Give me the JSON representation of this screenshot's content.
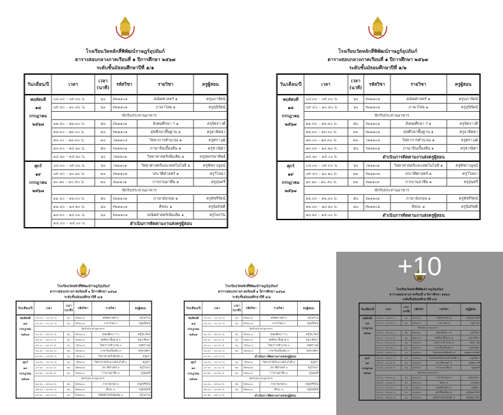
{
  "headers": {
    "day": "วัน/เดือน/ปี",
    "time": "เวลา",
    "dur1": "เวลา",
    "dur2": "(นาที)",
    "code": "รหัสวิชา",
    "subject": "รายวิชา",
    "teacher": "ครูผู้สอน"
  },
  "more_count": "+10",
  "tiles": [
    {
      "school": "โรงเรียนวัดหลักสี่พิพัฒน์ราษฎร์อุปถัมภ์",
      "line2": "ตารางสอบกลางภาคเรียนที่ ๑ ปีการศึกษา ๒๕๖๗",
      "line3": "ระดับชั้นมัธยมศึกษาปีที่ ๑/๑",
      "days": [
        {
          "label": [
            "พฤหัสบดี",
            "๑๘",
            "กรกฎาคม",
            "๒๕๖๗"
          ],
          "rows": [
            {
              "type": "exam",
              "time": "๐๘.๓๐ – ๐๙.๓๐ น.",
              "dur": "๖๐",
              "code": "ค๒๑๑๐๑",
              "subject": "คณิตศาสตร์ ๑",
              "teacher": "ครูนภารัตน์"
            },
            {
              "type": "exam",
              "time": "๐๙.๔๐ – ๑๐.๔๐ น.",
              "dur": "๖๐",
              "code": "ท๒๑๑๐๑",
              "subject": "ภาษาไทย ๑",
              "teacher": "ครูสุนีรัตน์"
            },
            {
              "type": "break",
              "text": "พักรับประทานอาหาร"
            },
            {
              "type": "exam",
              "time": "๑๑.๔๐ – ๑๒.๓๐ น.",
              "dur": "๕๐",
              "code": "ส๒๑๑๐๑",
              "subject": "สังคมศึกษา ฯ ๑",
              "teacher": "ครูจิตราวดี"
            },
            {
              "type": "exam",
              "time": "๑๒.๓๐ – ๑๓.๐๐ น.",
              "dur": "๓๐",
              "code": "พ๒๑๑๐๑",
              "subject": "สุขศึกษาพื้นฐาน ๑",
              "teacher": "ครูอาทิตยา"
            },
            {
              "type": "exam",
              "time": "๑๓.๐๐ – ๑๓.๓๐ น.",
              "dur": "๓๐",
              "code": "ว๒๑๑๐๔",
              "subject": "วิทยาการคำนวณ ๑",
              "teacher": "ครูศราวุฒิ"
            },
            {
              "type": "exam",
              "time": "๑๓.๓๐ – ๑๔.๒๐ น.",
              "dur": "๕๐",
              "code": "จ๒๑๒๐๑",
              "subject": "ภาษาจีนเบื้องต้น ๑",
              "teacher": "ครูชาณิศา"
            },
            {
              "type": "exam",
              "time": "๑๔.๒๐ – ๑๕.๒๐ น.",
              "dur": "๖๐",
              "code": "ว๒๑๒๐๑",
              "subject": "วิทยาศาสตร์เพิ่มเติม ๑",
              "teacher": "ครูสุพรรษาทิพย์"
            }
          ]
        },
        {
          "label": [
            "ศุกร์",
            "๑๙",
            "กรกฎาคม",
            "๒๕๖๗"
          ],
          "rows": [
            {
              "type": "exam",
              "time": "๐๘.๓๐ – ๐๙.๓๐ น.",
              "dur": "๖๐",
              "code": "ว๒๑๑๐๑",
              "subject": "วิทยาศาสตร์และเทคโนโลยี ๑",
              "teacher": "ครูพัชกาญจน์"
            },
            {
              "type": "exam",
              "time": "๐๙.๔๐ – ๑๐.๑๐ น.",
              "dur": "๓๐",
              "code": "ส๒๑๑๐๒",
              "subject": "ประวัติศาสตร์ ๑",
              "teacher": "ครูวิไลลา"
            },
            {
              "type": "exam",
              "time": "๑๐.๒๐ – ๑๐.๕๐ น.",
              "dur": "๓๐",
              "code": "ง๒๑๑๐๑",
              "subject": "การงานอาชีพ ๑",
              "teacher": "ครูสุนทรี"
            },
            {
              "type": "break",
              "text": "พักรับประทานอาหาร"
            },
            {
              "type": "exam",
              "time": "๑๑.๔๐ – ๑๒.๓๐ น.",
              "dur": "๕๐",
              "code": "อ๒๑๑๐๑",
              "subject": "ภาษาอังกฤษ ๑",
              "teacher": "ครูพัชรีรัตน์"
            },
            {
              "type": "exam",
              "time": "๑๒.๔๐ – ๑๓.๒๐ น.",
              "dur": "๔๐",
              "code": "ศ๒๑๑๐๑",
              "subject": "ศิลปะ ๑",
              "teacher": "ครูนิยกิตติ"
            },
            {
              "type": "exam",
              "time": "๑๓.๓๐ – ๑๔.๓๐ น.",
              "dur": "๖๐",
              "code": "ค๒๑๒๐๑",
              "subject": "คณิตศาสตร์เพิ่มเติม ๑",
              "teacher": "ครูไพรวัน"
            },
            {
              "type": "final",
              "time": "๑๔.๔๐ – ๑๕.๐๐ น.",
              "text": "ดำเนินการติดตามงานส่งครูผู้สอน"
            }
          ]
        }
      ]
    },
    {
      "school": "โรงเรียนวัดหลักสี่พิพัฒน์ราษฎร์อุปถัมภ์",
      "line2": "ตารางสอบกลางภาคเรียนที่ ๑ ปีการศึกษา ๒๕๖๗",
      "line3": "ระดับชั้นมัธยมศึกษาปีที่ ๑/๒",
      "days": [
        {
          "label": [
            "พฤหัสบดี",
            "๑๘",
            "กรกฎาคม",
            "๒๕๖๗"
          ],
          "rows": [
            {
              "type": "exam",
              "time": "๐๘.๓๐ – ๐๙.๓๐ น.",
              "dur": "๖๐",
              "code": "ค๒๑๑๐๑",
              "subject": "คณิตศาสตร์ ๑",
              "teacher": "ครูนภารัตน์"
            },
            {
              "type": "exam",
              "time": "๐๙.๔๐ – ๑๐.๔๐ น.",
              "dur": "๖๐",
              "code": "ท๒๑๑๐๑",
              "subject": "ภาษาไทย ๑",
              "teacher": "ครูสุนีรัตน์"
            },
            {
              "type": "break",
              "text": "พักรับประทานอาหาร"
            },
            {
              "type": "exam",
              "time": "๑๑.๔๐ – ๑๒.๓๐ น.",
              "dur": "๕๐",
              "code": "ส๒๑๑๐๑",
              "subject": "สังคมศึกษา ฯ ๑",
              "teacher": "ครูจิตราวดี"
            },
            {
              "type": "exam",
              "time": "๑๒.๓๐ – ๑๓.๐๐ น.",
              "dur": "๓๐",
              "code": "พ๒๑๑๐๑",
              "subject": "สุขศึกษาพื้นฐาน ๑",
              "teacher": "ครูอาทิตยา"
            },
            {
              "type": "exam",
              "time": "๑๓.๐๐ – ๑๓.๓๐ น.",
              "dur": "๓๐",
              "code": "ว๒๑๑๐๔",
              "subject": "วิทยาการคำนวณ ๑",
              "teacher": "ครูศราวุฒิ"
            },
            {
              "type": "exam",
              "time": "๑๓.๓๐ – ๑๔.๒๐ น.",
              "dur": "๕๐",
              "code": "จ๒๑๒๐๑",
              "subject": "ภาษาจีนเบื้องต้น ๑",
              "teacher": "ครูชาณิศา"
            },
            {
              "type": "final",
              "time": "๑๔.๒๐ – ๑๕.๐๐ น.",
              "text": "ดำเนินการติดตามงานส่งครูผู้สอน"
            }
          ]
        },
        {
          "label": [
            "ศุกร์",
            "๑๙",
            "กรกฎาคม",
            "๒๕๖๗"
          ],
          "rows": [
            {
              "type": "exam",
              "time": "๐๘.๓๐ – ๐๙.๓๐ น.",
              "dur": "๖๐",
              "code": "ว๒๑๑๐๑",
              "subject": "วิทยาศาสตร์และเทคโนโลยี ๑",
              "teacher": "ครูพัชกาญจน์"
            },
            {
              "type": "exam",
              "time": "๐๙.๔๐ – ๑๐.๑๐ น.",
              "dur": "๓๐",
              "code": "ส๒๑๑๐๒",
              "subject": "ประวัติศาสตร์ ๑",
              "teacher": "ครูวิไลลา"
            },
            {
              "type": "exam",
              "time": "๑๐.๒๐ – ๑๐.๕๐ น.",
              "dur": "๓๐",
              "code": "ง๒๑๑๐๑",
              "subject": "การงานอาชีพ ๑",
              "teacher": "ครูสุนทรี"
            },
            {
              "type": "break",
              "text": "พักรับประทานอาหาร"
            },
            {
              "type": "exam",
              "time": "๑๑.๔๐ – ๑๒.๓๐ น.",
              "dur": "๕๐",
              "code": "อ๒๑๑๐๑",
              "subject": "ภาษาอังกฤษ ๑",
              "teacher": "ครูพัชรีรัตน์"
            },
            {
              "type": "exam",
              "time": "๑๒.๔๐ – ๑๓.๒๐ น.",
              "dur": "๔๐",
              "code": "ศ๒๑๑๐๑",
              "subject": "ศิลปะ ๑",
              "teacher": "ครูนิยกิตติ"
            },
            {
              "type": "final",
              "time": "๑๓.๒๐ – ๑๕.๐๐ น.",
              "text": "ดำเนินการติดตามงานส่งครูผู้สอน"
            }
          ]
        }
      ]
    },
    {
      "school": "โรงเรียนวัดหลักสี่พิพัฒน์ราษฎร์อุปถัมภ์",
      "line2": "ตารางสอบกลางภาคเรียนที่ ๑ ปีการศึกษา ๒๕๖๗",
      "line3": "ระดับชั้นมัธยมศึกษาปีที่ ๒/๑",
      "days": [
        {
          "label": [
            "พฤหัสบดี",
            "๑๘",
            "กรกฎาคม",
            "๒๕๖๗"
          ],
          "rows": [
            {
              "type": "exam",
              "time": "๐๘.๓๐ – ๐๙.๓๐ น.",
              "dur": "๖๐",
              "code": "ค๒๒๑๐๑",
              "subject": "คณิตศาสตร์ ๓",
              "teacher": "ครูไพรวัน"
            },
            {
              "type": "exam",
              "time": "๐๙.๔๐ – ๑๐.๔๐ น.",
              "dur": "๖๐",
              "code": "ท๒๒๑๐๑",
              "subject": "ภาษาไทย ๓",
              "teacher": "ครูสุนีรัตน์"
            },
            {
              "type": "break",
              "text": "พักรับประทานอาหาร"
            },
            {
              "type": "exam",
              "time": "๑๑.๔๐ – ๑๒.๓๐ น.",
              "dur": "๕๐",
              "code": "ส๒๒๑๐๑",
              "subject": "สังคมศึกษา ฯ ๓",
              "teacher": "ครูปิยะรัตน์"
            },
            {
              "type": "exam",
              "time": "๑๒.๓๐ – ๑๓.๐๐ น.",
              "dur": "๓๐",
              "code": "พ๒๒๑๐๑",
              "subject": "สุขศึกษาพื้นฐาน ๓",
              "teacher": "ครูอาทิตยา"
            },
            {
              "type": "exam",
              "time": "๑๓.๐๐ – ๑๓.๓๐ น.",
              "dur": "๓๐",
              "code": "ว๒๒๑๐๔",
              "subject": "วิทยาการคำนวณ ๓",
              "teacher": "ครูศราวุฒิ"
            },
            {
              "type": "exam",
              "time": "๑๓.๓๐ – ๑๔.๒๐ น.",
              "dur": "๕๐",
              "code": "จ๒๒๒๐๑",
              "subject": "ภาษาจีนเบื้องต้น ๓",
              "teacher": "ครูชาณิศา"
            },
            {
              "type": "exam",
              "time": "๑๔.๒๐ – ๑๕.๒๐ น.",
              "dur": "๖๐",
              "code": "ว๒๒๒๐๑",
              "subject": "วิทยาศาสตร์เพิ่มเติม ๓",
              "teacher": "ครูสุดา"
            }
          ]
        },
        {
          "label": [
            "ศุกร์",
            "๑๙",
            "กรกฎาคม",
            "๒๕๖๗"
          ],
          "rows": [
            {
              "type": "exam",
              "time": "๐๘.๓๐ – ๐๙.๓๐ น.",
              "dur": "๖๐",
              "code": "ว๒๒๑๐๑",
              "subject": "วิทยาศาสตร์และเทคโนโลยี ๓",
              "teacher": "ครูสุดา"
            },
            {
              "type": "exam",
              "time": "๐๙.๔๐ – ๑๐.๑๐ น.",
              "dur": "๓๐",
              "code": "ส๒๒๑๐๒",
              "subject": "ประวัติศาสตร์ ๓",
              "teacher": "ครูวิไลลา"
            },
            {
              "type": "exam",
              "time": "๑๐.๒๐ – ๑๐.๕๐ น.",
              "dur": "๓๐",
              "code": "ง๒๒๑๐๑",
              "subject": "การงานอาชีพ ๓",
              "teacher": "ครูสุนทรี"
            },
            {
              "type": "break",
              "text": "พักรับประทานอาหาร"
            },
            {
              "type": "exam",
              "time": "๑๑.๔๐ – ๑๒.๓๐ น.",
              "dur": "๕๐",
              "code": "อ๒๒๑๐๑",
              "subject": "ภาษาอังกฤษ ๓",
              "teacher": "ครูพัชรีรัตน์"
            },
            {
              "type": "exam",
              "time": "๑๒.๔๐ – ๑๓.๒๐ น.",
              "dur": "๔๐",
              "code": "ศ๒๒๑๐๑",
              "subject": "ศิลปะ ๓",
              "teacher": "ครูนิยกิตติ"
            },
            {
              "type": "exam",
              "time": "๑๓.๓๐ – ๑๔.๓๐ น.",
              "dur": "๖๐",
              "code": "ค๒๒๒๐๑",
              "subject": "คณิตศาสตร์เพิ่มเติม ๓",
              "teacher": "ครูไพรวัน"
            }
          ]
        }
      ]
    },
    {
      "school": "โรงเรียนวัดหลักสี่พิพัฒน์ราษฎร์อุปถัมภ์",
      "line2": "ตารางสอบกลางภาคเรียนที่ ๑ ปีการศึกษา ๒๕๖๗",
      "line3": "ระดับชั้นมัธยมศึกษาปีที่ ๒/๒",
      "days": [
        {
          "label": [
            "พฤหัสบดี",
            "๑๘",
            "กรกฎาคม",
            "๒๕๖๗"
          ],
          "rows": [
            {
              "type": "exam",
              "time": "๐๘.๓๐ – ๐๙.๓๐ น.",
              "dur": "๖๐",
              "code": "ค๒๒๑๐๑",
              "subject": "คณิตศาสตร์ ๓",
              "teacher": "ครูไพรวัน"
            },
            {
              "type": "exam",
              "time": "๐๙.๔๐ – ๑๐.๔๐ น.",
              "dur": "๖๐",
              "code": "ท๒๒๑๐๑",
              "subject": "ภาษาไทย ๓",
              "teacher": "ครูสุนีรัตน์"
            },
            {
              "type": "break",
              "text": "พักรับประทานอาหาร"
            },
            {
              "type": "exam",
              "time": "๑๑.๔๐ – ๑๒.๓๐ น.",
              "dur": "๕๐",
              "code": "ส๒๒๑๐๑",
              "subject": "สังคมศึกษา ฯ ๓",
              "teacher": "ครูปิยะรัตน์"
            },
            {
              "type": "exam",
              "time": "๑๒.๓๐ – ๑๓.๐๐ น.",
              "dur": "๓๐",
              "code": "พ๒๒๑๐๑",
              "subject": "สุขศึกษาพื้นฐาน ๓",
              "teacher": "ครูอาทิตยา"
            },
            {
              "type": "exam",
              "time": "๑๓.๐๐ – ๑๓.๓๐ น.",
              "dur": "๓๐",
              "code": "ว๒๒๑๐๔",
              "subject": "วิทยาการคำนวณ ๓",
              "teacher": "ครูศราวุฒิ"
            },
            {
              "type": "exam",
              "time": "๑๓.๓๐ – ๑๔.๒๐ น.",
              "dur": "๕๐",
              "code": "จ๒๒๒๐๑",
              "subject": "ภาษาจีนเบื้องต้น ๓",
              "teacher": "ครูชาณิศา"
            },
            {
              "type": "final",
              "time": "๑๔.๒๐ – ๑๕.๐๐ น.",
              "text": "ดำเนินการติดตามงานส่งครูผู้สอน"
            }
          ]
        },
        {
          "label": [
            "ศุกร์",
            "๑๙",
            "กรกฎาคม",
            "๒๕๖๗"
          ],
          "rows": [
            {
              "type": "exam",
              "time": "๐๘.๓๐ – ๐๙.๓๐ น.",
              "dur": "๖๐",
              "code": "ว๒๒๑๐๑",
              "subject": "วิทยาศาสตร์และเทคโนโลยี ๓",
              "teacher": "ครูสุดา"
            },
            {
              "type": "exam",
              "time": "๐๙.๔๐ – ๑๐.๑๐ น.",
              "dur": "๓๐",
              "code": "ส๒๒๑๐๒",
              "subject": "ประวัติศาสตร์ ๓",
              "teacher": "ครูวิไลลา"
            },
            {
              "type": "exam",
              "time": "๑๐.๒๐ – ๑๐.๕๐ น.",
              "dur": "๓๐",
              "code": "ง๒๒๑๐๑",
              "subject": "การงานอาชีพ ๓",
              "teacher": "ครูสุนทรี"
            },
            {
              "type": "break",
              "text": "พักรับประทานอาหาร"
            },
            {
              "type": "exam",
              "time": "๑๑.๔๐ – ๑๒.๓๐ น.",
              "dur": "๕๐",
              "code": "อ๒๒๑๐๑",
              "subject": "ภาษาอังกฤษ ๓",
              "teacher": "ครูพัชรีรัตน์"
            },
            {
              "type": "exam",
              "time": "๑๒.๔๐ – ๑๓.๒๐ น.",
              "dur": "๔๐",
              "code": "ศ๒๒๑๐๑",
              "subject": "ศิลปะ ๓",
              "teacher": "ครูนิยกิตติ"
            },
            {
              "type": "final",
              "time": "๑๓.๒๐ – ๑๕.๐๐ น.",
              "text": "ดำเนินการติดตามงานส่งครูผู้สอน"
            }
          ]
        }
      ]
    },
    {
      "school": "โรงเรียนวัดหลักสี่พิพัฒน์ราษฎร์อุปถัมภ์",
      "line2": "ตารางสอบกลางภาคเรียนที่ ๑ ปีการศึกษา ๒๕๖๗",
      "line3": "ระดับชั้นมัธยมศึกษาปีที่ ๓/๑",
      "days": [
        {
          "label": [
            "พฤหัสบดี",
            "๑๘",
            "กรกฎาคม",
            "๒๕๖๗"
          ],
          "rows": [
            {
              "type": "exam",
              "time": "๐๘.๓๐ – ๐๙.๓๐ น.",
              "dur": "๖๐",
              "code": "ค๒๓๑๐๑",
              "subject": "คณิตศาสตร์ ๕",
              "teacher": "ครูปัญญารัตน์"
            },
            {
              "type": "exam",
              "time": "๐๙.๔๐ – ๑๐.๔๐ น.",
              "dur": "๖๐",
              "code": "ท๒๓๑๐๑",
              "subject": "ภาษาไทย ๕",
              "teacher": "ครูจิราพร"
            },
            {
              "type": "break",
              "text": "พักรับประทานอาหาร"
            },
            {
              "type": "exam",
              "time": "๑๑.๔๐ – ๑๒.๓๐ น.",
              "dur": "๕๐",
              "code": "ส๒๓๑๐๑",
              "subject": "สังคมศึกษา ฯ ๕",
              "teacher": "ครูวิไลลา"
            },
            {
              "type": "exam",
              "time": "๑๒.๓๐ – ๑๓.๐๐ น.",
              "dur": "๓๐",
              "code": "พ๒๓๑๐๑",
              "subject": "สุขศึกษาพื้นฐาน ๕",
              "teacher": "ครูอาทิตยา"
            },
            {
              "type": "exam",
              "time": "๑๓.๐๐ – ๑๓.๓๐ น.",
              "dur": "๓๐",
              "code": "ว๒๓๑๐๔",
              "subject": "วิทยาการคำนวณ ๕",
              "teacher": "ครูศราวุฒิ"
            },
            {
              "type": "exam",
              "time": "๑๓.๓๐ – ๑๔.๒๐ น.",
              "dur": "๕๐",
              "code": "จ๒๓๒๐๑",
              "subject": "ภาษาจีนเบื้องต้น ๕",
              "teacher": "ครูชาณิศา"
            },
            {
              "type": "exam",
              "time": "๑๔.๒๐ – ๑๕.๒๐ น.",
              "dur": "๖๐",
              "code": "ว๒๓๒๐๑",
              "subject": "วิทยาศาสตร์เพิ่มเติม ๕",
              "teacher": "ครูสุพรรษาทิพย์"
            }
          ]
        },
        {
          "label": [
            "ศุกร์",
            "๑๙",
            "กรกฎาคม",
            "๒๕๖๗"
          ],
          "rows": [
            {
              "type": "exam",
              "time": "๐๘.๓๐ – ๐๙.๓๐ น.",
              "dur": "๖๐",
              "code": "ว๒๓๑๐๑",
              "subject": "วิทยาศาสตร์และเทคโนโลยี ๕",
              "teacher": "ครูเบ็ญจา"
            },
            {
              "type": "exam",
              "time": "๐๙.๔๐ – ๑๐.๑๐ น.",
              "dur": "๓๐",
              "code": "ส๒๓๑๐๒",
              "subject": "ประวัติศาสตร์ ๕",
              "teacher": "ครูจิตราวดี"
            },
            {
              "type": "exam",
              "time": "๑๐.๒๐ – ๑๐.๕๐ น.",
              "dur": "๓๐",
              "code": "ง๒๓๑๐๑",
              "subject": "การงานอาชีพ ๕",
              "teacher": "ครูสุนทรี"
            },
            {
              "type": "break",
              "text": "พักรับประทานอาหาร"
            },
            {
              "type": "exam",
              "time": "๑๑.๔๐ – ๑๒.๓๐ น.",
              "dur": "๕๐",
              "code": "อ๒๓๑๐๑",
              "subject": "ภาษาอังกฤษ ๕",
              "teacher": "ครูจินต์จุฑา"
            },
            {
              "type": "exam",
              "time": "๑๒.๔๐ – ๑๓.๒๐ น.",
              "dur": "๔๐",
              "code": "ศ๒๓๑๐๑",
              "subject": "ศิลปะ ๕",
              "teacher": "ครูนพดล"
            },
            {
              "type": "exam",
              "time": "๑๓.๓๐ – ๑๔.๐๐ น.",
              "dur": "๓๐",
              "code": "ง๒๓๒๐๓",
              "subject": "คอมพิวเตอร์ ๕",
              "teacher": "ครูชุติมา"
            },
            {
              "type": "exam",
              "time": "๑๔.๐๐ – ๑๔.๓๐ น.",
              "dur": "๓๐",
              "code": "ง๒๓๒๐๑",
              "subject": "หน้าที่พลเมือง ๕",
              "teacher": "ครูปัญญารัตน์"
            },
            {
              "type": "exam",
              "time": "๑๔.๓๐ – ๑๕.๓๐ น.",
              "dur": "๖๐",
              "code": "ค๒๓๒๐๑",
              "subject": "คณิตศาสตร์เพิ่มเติม ๕",
              "teacher": "ครูปัญญารัตน์"
            }
          ]
        }
      ]
    }
  ]
}
